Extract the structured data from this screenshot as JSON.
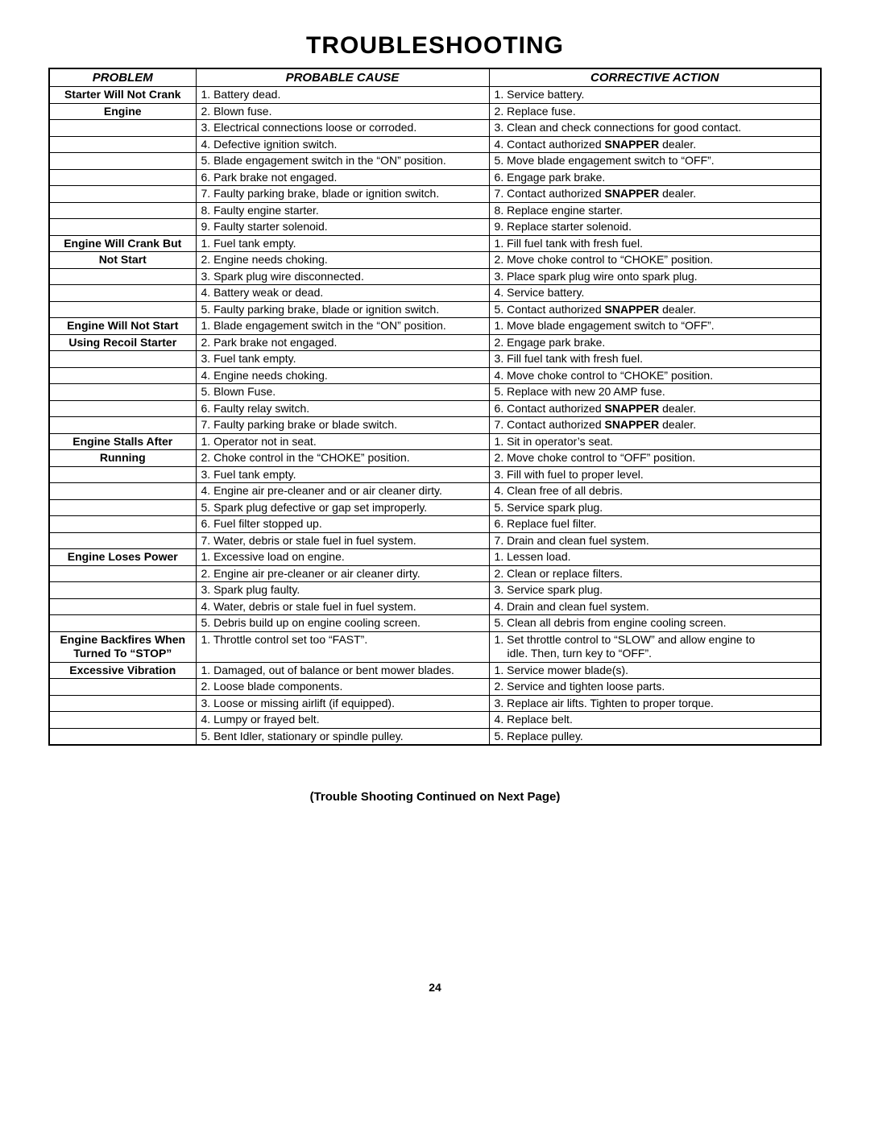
{
  "title": "TROUBLESHOOTING",
  "headers": {
    "problem": "PROBLEM",
    "cause": "PROBABLE CAUSE",
    "action": "CORRECTIVE ACTION"
  },
  "note": "(Trouble Shooting Continued on Next Page)",
  "page_number": "24",
  "sections": [
    {
      "problem_lines": [
        "Starter Will Not Crank",
        "Engine"
      ],
      "rows": [
        {
          "cause": "1. Battery dead.",
          "action": "1. Service battery."
        },
        {
          "cause": "2. Blown fuse.",
          "action": "2. Replace fuse."
        },
        {
          "cause": "3. Electrical connections loose or corroded.",
          "action": "3. Clean and check connections for good contact."
        },
        {
          "cause": "4. Defective ignition switch.",
          "action_parts": [
            "4. Contact authorized ",
            {
              "bold": "SNAPPER"
            },
            " dealer."
          ]
        },
        {
          "cause": "5. Blade engagement switch in the “ON” position.",
          "action": "5. Move blade engagement switch to “OFF”."
        },
        {
          "cause": "6. Park brake not engaged.",
          "action": "6. Engage park brake."
        },
        {
          "cause": "7. Faulty parking brake, blade or ignition switch.",
          "action_parts": [
            "7. Contact authorized ",
            {
              "bold": "SNAPPER"
            },
            " dealer."
          ]
        },
        {
          "cause": "8. Faulty engine starter.",
          "action": "8. Replace engine starter."
        },
        {
          "cause": "9. Faulty starter solenoid.",
          "action": "9. Replace starter solenoid."
        }
      ]
    },
    {
      "problem_lines": [
        "Engine Will Crank But",
        "Not Start"
      ],
      "rows": [
        {
          "cause": "1. Fuel tank empty.",
          "action": "1. Fill fuel tank with fresh fuel."
        },
        {
          "cause": "2. Engine needs choking.",
          "action": "2. Move choke control to “CHOKE” position."
        },
        {
          "cause": "3. Spark plug wire disconnected.",
          "action": "3. Place spark plug wire onto spark plug."
        },
        {
          "cause": "4. Battery weak or dead.",
          "action": "4. Service battery."
        },
        {
          "cause": "5. Faulty parking brake, blade or ignition switch.",
          "action_parts": [
            "5. Contact authorized ",
            {
              "bold": "SNAPPER"
            },
            " dealer."
          ]
        }
      ]
    },
    {
      "problem_lines": [
        "Engine Will Not Start",
        "Using Recoil Starter"
      ],
      "rows": [
        {
          "cause": "1. Blade engagement switch in the “ON” position.",
          "action": "1. Move blade engagement switch to “OFF”."
        },
        {
          "cause": "2. Park brake not engaged.",
          "action": "2. Engage park brake."
        },
        {
          "cause": "3. Fuel tank empty.",
          "action": "3. Fill fuel tank with fresh fuel."
        },
        {
          "cause": "4. Engine needs choking.",
          "action": "4. Move choke control to “CHOKE” position."
        },
        {
          "cause": "5. Blown Fuse.",
          "action": "5. Replace with new 20 AMP fuse."
        },
        {
          "cause": "6. Faulty relay switch.",
          "action_parts": [
            "6. Contact authorized ",
            {
              "bold": "SNAPPER"
            },
            " dealer."
          ]
        },
        {
          "cause": "7. Faulty parking brake or blade switch.",
          "action_parts": [
            "7. Contact authorized ",
            {
              "bold": "SNAPPER"
            },
            " dealer."
          ]
        }
      ]
    },
    {
      "problem_lines": [
        "Engine Stalls After",
        "Running"
      ],
      "rows": [
        {
          "cause": "1. Operator not in seat.",
          "action": "1. Sit in operator’s seat."
        },
        {
          "cause": "2. Choke control in the “CHOKE” position.",
          "action": "2. Move choke control to “OFF” position."
        },
        {
          "cause": "3. Fuel tank empty.",
          "action": "3. Fill with fuel to proper level."
        },
        {
          "cause": "4. Engine air pre-cleaner and or air cleaner dirty.",
          "action": "4. Clean free of all debris."
        },
        {
          "cause": "5. Spark plug defective or gap set improperly.",
          "action": "5. Service spark plug."
        },
        {
          "cause": "6. Fuel filter stopped up.",
          "action": "6. Replace fuel filter."
        },
        {
          "cause": "7. Water, debris or stale fuel in fuel system.",
          "action": "7. Drain and clean fuel system."
        }
      ]
    },
    {
      "problem_lines": [
        "Engine Loses Power"
      ],
      "rows": [
        {
          "cause": "1. Excessive load on engine.",
          "action": "1. Lessen load."
        },
        {
          "cause": "2. Engine air pre-cleaner or air cleaner dirty.",
          "action": "2. Clean or replace filters."
        },
        {
          "cause": "3. Spark plug faulty.",
          "action": "3. Service spark plug."
        },
        {
          "cause": "4. Water, debris or stale fuel in fuel system.",
          "action": "4. Drain and clean fuel system."
        },
        {
          "cause": "5. Debris build up on engine cooling screen.",
          "action": "5. Clean all debris from engine cooling screen."
        }
      ]
    },
    {
      "problem_lines": [
        "Engine Backfires When",
        "Turned To “STOP”"
      ],
      "rows": [
        {
          "cause": "1. Throttle control set too “FAST”.",
          "action": "1. Set throttle control to “SLOW” and allow engine to idle.  Then, turn key to “OFF”.",
          "action_indent": true
        }
      ]
    },
    {
      "problem_lines": [
        "Excessive Vibration"
      ],
      "rows": [
        {
          "cause": "1. Damaged, out of balance or bent mower blades.",
          "action": "1. Service mower blade(s)."
        },
        {
          "cause": "2. Loose blade components.",
          "action": "2. Service and tighten loose parts."
        },
        {
          "cause": "3. Loose or missing airlift (if equipped).",
          "action": "3. Replace air lifts.  Tighten to proper torque."
        },
        {
          "cause": "4. Lumpy or frayed belt.",
          "action": "4. Replace belt."
        },
        {
          "cause": "5. Bent Idler, stationary or spindle pulley.",
          "action": "5. Replace pulley."
        }
      ]
    }
  ]
}
